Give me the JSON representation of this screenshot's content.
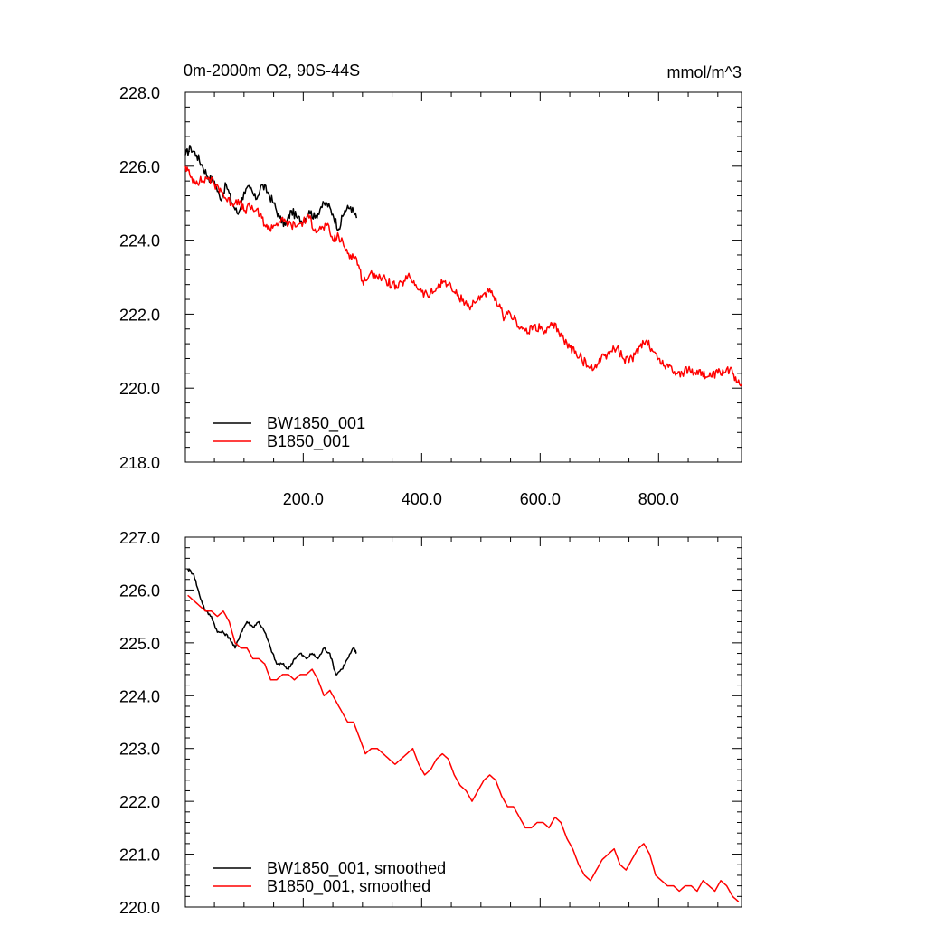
{
  "header": {
    "title_left": "0m-2000m O2, 90S-44S",
    "title_right": "mmol/m^3"
  },
  "colors": {
    "series_a": "#000000",
    "series_b": "#ff0000"
  },
  "chart_data": [
    {
      "type": "line",
      "title": "0m-2000m O2, 90S-44S",
      "units": "mmol/m^3",
      "xlim": [
        1,
        940
      ],
      "ylim": [
        218,
        228
      ],
      "xticks": [
        200,
        400,
        600,
        800
      ],
      "xtick_labels": [
        "200.0",
        "400.0",
        "600.0",
        "800.0"
      ],
      "yticks": [
        218,
        220,
        222,
        224,
        226,
        228
      ],
      "ytick_labels": [
        "218.0",
        "220.0",
        "222.0",
        "224.0",
        "226.0",
        "228.0"
      ],
      "legend": "bottom-left",
      "series": [
        {
          "name": "BW1850_001",
          "color": "#000000",
          "x": [
            1,
            10,
            20,
            30,
            40,
            50,
            60,
            70,
            80,
            90,
            100,
            110,
            120,
            130,
            140,
            150,
            160,
            170,
            180,
            190,
            200,
            210,
            220,
            230,
            240,
            250,
            260,
            270,
            280,
            290
          ],
          "y": [
            226.3,
            226.5,
            226.3,
            226.0,
            225.7,
            225.6,
            225.1,
            225.5,
            225.0,
            224.7,
            225.3,
            225.4,
            225.1,
            225.5,
            225.3,
            225.0,
            224.6,
            224.4,
            224.8,
            224.6,
            224.5,
            224.8,
            224.6,
            224.9,
            225.0,
            224.7,
            224.3,
            224.8,
            224.9,
            224.6
          ],
          "noise": 0.12
        },
        {
          "name": "B1850_001",
          "color": "#ff0000",
          "x": [
            1,
            10,
            20,
            30,
            40,
            50,
            60,
            70,
            80,
            90,
            100,
            110,
            120,
            130,
            140,
            150,
            160,
            170,
            180,
            190,
            200,
            210,
            220,
            230,
            240,
            250,
            260,
            270,
            280,
            290,
            300,
            310,
            320,
            330,
            340,
            350,
            360,
            370,
            380,
            390,
            400,
            410,
            420,
            430,
            440,
            450,
            460,
            470,
            480,
            490,
            500,
            510,
            520,
            530,
            540,
            550,
            560,
            570,
            580,
            590,
            600,
            610,
            620,
            630,
            640,
            650,
            660,
            670,
            680,
            690,
            700,
            710,
            720,
            730,
            740,
            750,
            760,
            770,
            780,
            790,
            800,
            810,
            820,
            830,
            840,
            850,
            860,
            870,
            880,
            890,
            900,
            910,
            920,
            930,
            940
          ],
          "y": [
            226.0,
            225.7,
            225.6,
            225.6,
            225.7,
            225.5,
            225.4,
            225.1,
            225.0,
            225.1,
            224.8,
            224.9,
            224.8,
            224.6,
            224.3,
            224.4,
            224.5,
            224.5,
            224.4,
            224.4,
            224.5,
            224.6,
            224.3,
            224.3,
            224.4,
            224.0,
            224.1,
            223.8,
            223.6,
            223.5,
            222.9,
            223.0,
            223.1,
            223.0,
            222.9,
            222.8,
            222.7,
            222.9,
            223.0,
            222.8,
            222.6,
            222.5,
            222.6,
            222.8,
            222.9,
            222.7,
            222.5,
            222.4,
            222.2,
            222.3,
            222.5,
            222.6,
            222.5,
            222.2,
            221.9,
            222.0,
            221.8,
            221.6,
            221.5,
            221.7,
            221.6,
            221.5,
            221.7,
            221.6,
            221.3,
            221.1,
            221.0,
            220.8,
            220.6,
            220.5,
            220.8,
            220.9,
            221.0,
            221.1,
            220.8,
            220.7,
            220.9,
            221.2,
            221.3,
            221.0,
            220.8,
            220.6,
            220.6,
            220.4,
            220.4,
            220.5,
            220.4,
            220.5,
            220.3,
            220.3,
            220.4,
            220.4,
            220.5,
            220.3,
            220.1
          ],
          "noise": 0.13
        }
      ]
    },
    {
      "type": "line",
      "xlim": [
        1,
        940
      ],
      "ylim": [
        220,
        227
      ],
      "xticks": [
        200,
        400,
        600,
        800
      ],
      "yticks": [
        220,
        221,
        222,
        223,
        224,
        225,
        226,
        227
      ],
      "ytick_labels": [
        "220.0",
        "221.0",
        "222.0",
        "223.0",
        "224.0",
        "225.0",
        "226.0",
        "227.0"
      ],
      "legend": "bottom-left",
      "series": [
        {
          "name": "BW1850_001, smoothed",
          "color": "#000000",
          "x": [
            5,
            15,
            25,
            35,
            45,
            55,
            65,
            75,
            85,
            95,
            105,
            115,
            125,
            135,
            145,
            155,
            165,
            175,
            185,
            195,
            205,
            215,
            225,
            235,
            245,
            255,
            265,
            275,
            285,
            290
          ],
          "y": [
            226.4,
            226.3,
            225.9,
            225.6,
            225.5,
            225.2,
            225.2,
            225.1,
            224.9,
            225.2,
            225.4,
            225.3,
            225.4,
            225.2,
            224.9,
            224.6,
            224.6,
            224.5,
            224.7,
            224.8,
            224.7,
            224.8,
            224.7,
            224.9,
            224.8,
            224.4,
            224.5,
            224.7,
            224.9,
            224.8
          ],
          "noise": 0.03
        },
        {
          "name": "B1850_001, smoothed",
          "color": "#ff0000",
          "x": [
            5,
            15,
            25,
            35,
            45,
            55,
            65,
            75,
            85,
            95,
            105,
            115,
            125,
            135,
            145,
            155,
            165,
            175,
            185,
            195,
            205,
            215,
            225,
            235,
            245,
            255,
            265,
            275,
            285,
            295,
            305,
            315,
            325,
            335,
            345,
            355,
            365,
            375,
            385,
            395,
            405,
            415,
            425,
            435,
            445,
            455,
            465,
            475,
            485,
            495,
            505,
            515,
            525,
            535,
            545,
            555,
            565,
            575,
            585,
            595,
            605,
            615,
            625,
            635,
            645,
            655,
            665,
            675,
            685,
            695,
            705,
            715,
            725,
            735,
            745,
            755,
            765,
            775,
            785,
            795,
            805,
            815,
            825,
            835,
            845,
            855,
            865,
            875,
            885,
            895,
            905,
            915,
            925,
            935
          ],
          "y": [
            225.9,
            225.8,
            225.7,
            225.6,
            225.6,
            225.5,
            225.6,
            225.4,
            225.0,
            224.9,
            224.9,
            224.7,
            224.7,
            224.6,
            224.3,
            224.3,
            224.4,
            224.4,
            224.3,
            224.4,
            224.4,
            224.5,
            224.3,
            224.0,
            224.1,
            223.9,
            223.7,
            223.5,
            223.5,
            223.2,
            222.9,
            223.0,
            223.0,
            222.9,
            222.8,
            222.7,
            222.8,
            222.9,
            223.0,
            222.7,
            222.5,
            222.6,
            222.8,
            222.9,
            222.8,
            222.5,
            222.3,
            222.2,
            222.0,
            222.2,
            222.4,
            222.5,
            222.4,
            222.1,
            221.9,
            221.9,
            221.7,
            221.5,
            221.5,
            221.6,
            221.6,
            221.5,
            221.7,
            221.6,
            221.3,
            221.1,
            220.8,
            220.6,
            220.5,
            220.7,
            220.9,
            221.0,
            221.1,
            220.8,
            220.7,
            220.9,
            221.1,
            221.2,
            221.0,
            220.6,
            220.5,
            220.4,
            220.4,
            220.3,
            220.4,
            220.4,
            220.3,
            220.5,
            220.4,
            220.3,
            220.5,
            220.4,
            220.2,
            220.1
          ],
          "noise": 0.0
        }
      ]
    }
  ]
}
